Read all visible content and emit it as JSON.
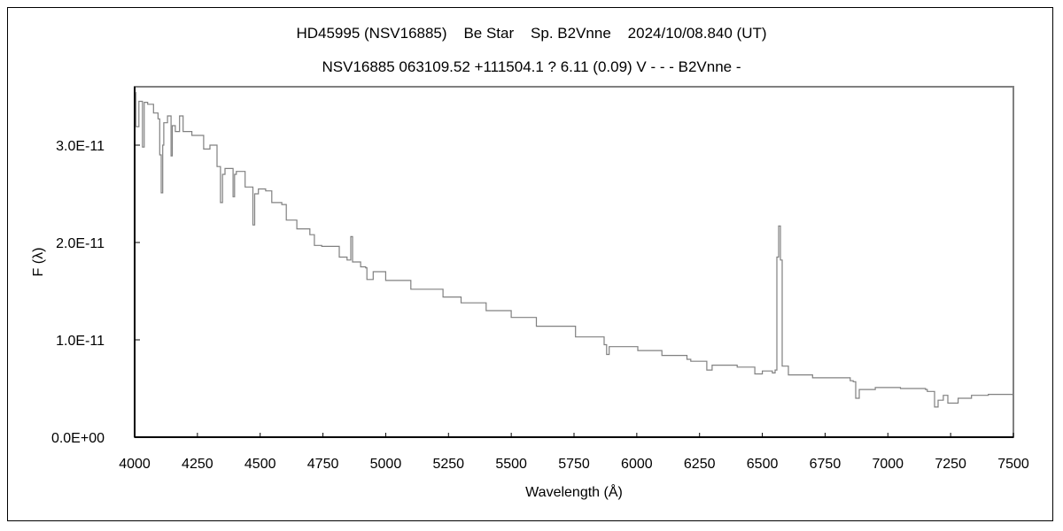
{
  "chart_data": {
    "type": "line",
    "title": "HD45995 (NSV16885)    Be Star    Sp. B2Vnne    2024/10/08.840 (UT)",
    "subtitle": "NSV16885 063109.52 +111504.1 ? 6.11 (0.09) V - - - B2Vnne -",
    "xlabel": "Wavelength (Å)",
    "ylabel": "F (λ)",
    "xlim": [
      4000,
      7500
    ],
    "ylim": [
      0,
      3.6e-11
    ],
    "xticks": [
      "4000",
      "4250",
      "4500",
      "4750",
      "5000",
      "5250",
      "5500",
      "5750",
      "6000",
      "6250",
      "6500",
      "6750",
      "7000",
      "7250",
      "7500"
    ],
    "yticks": [
      {
        "value": 0,
        "label": "0.0E+00"
      },
      {
        "value": 1e-11,
        "label": "1.0E-11"
      },
      {
        "value": 2e-11,
        "label": "2.0E-11"
      },
      {
        "value": 3e-11,
        "label": "3.0E-11"
      }
    ],
    "grid": false,
    "line_color": "#808080",
    "series": [
      {
        "x": [
          4002,
          4005,
          4017,
          4031,
          4038,
          4052,
          4075,
          4093,
          4100,
          4106,
          4112,
          4116,
          4131,
          4145,
          4150,
          4162,
          4179,
          4193,
          4228,
          4275,
          4300,
          4328,
          4342,
          4350,
          4360,
          4381,
          4392,
          4398,
          4405,
          4440,
          4463,
          4471,
          4478,
          4493,
          4522,
          4546,
          4586,
          4604,
          4634,
          4646,
          4698,
          4716,
          4745,
          4815,
          4846,
          4858,
          4861,
          4864,
          4868,
          4900,
          4920,
          4925,
          4950,
          5000,
          5100,
          5228,
          5300,
          5400,
          5500,
          5600,
          5756,
          5870,
          5880,
          5890,
          6004,
          6100,
          6200,
          6215,
          6279,
          6300,
          6400,
          6470,
          6500,
          6540,
          6551,
          6558,
          6565,
          6572,
          6579,
          6604,
          6700,
          6850,
          6862,
          6872,
          6886,
          6950,
          7050,
          7150,
          7157,
          7186,
          7200,
          7221,
          7239,
          7280,
          7333,
          7400,
          7498
        ],
        "y": [
          3.54e-11,
          3.19e-11,
          3.45e-11,
          2.98e-11,
          3.44e-11,
          3.42e-11,
          3.33e-11,
          3.27e-11,
          2.9e-11,
          2.51e-11,
          3e-11,
          3.23e-11,
          3.3e-11,
          2.89e-11,
          3.2e-11,
          3.14e-11,
          3.3e-11,
          3.14e-11,
          3.1e-11,
          2.96e-11,
          3e-11,
          2.78e-11,
          2.41e-11,
          2.7e-11,
          2.76e-11,
          2.76e-11,
          2.47e-11,
          2.7e-11,
          2.73e-11,
          2.57e-11,
          2.57e-11,
          2.18e-11,
          2.5e-11,
          2.55e-11,
          2.53e-11,
          2.41e-11,
          2.39e-11,
          2.23e-11,
          2.23e-11,
          2.14e-11,
          2.08e-11,
          1.97e-11,
          1.96e-11,
          1.85e-11,
          1.82e-11,
          1.82e-11,
          2.06e-11,
          2.06e-11,
          1.8e-11,
          1.75e-11,
          1.74e-11,
          1.62e-11,
          1.7e-11,
          1.61e-11,
          1.52e-11,
          1.44e-11,
          1.38e-11,
          1.3e-11,
          1.23e-11,
          1.14e-11,
          1.03e-11,
          9.5e-12,
          8.5e-12,
          9.3e-12,
          8.9e-12,
          8.4e-12,
          8e-12,
          7.8e-12,
          6.9e-12,
          7.4e-12,
          7.2e-12,
          6.5e-12,
          6.8e-12,
          6.6e-12,
          6.9e-12,
          1.85e-11,
          2.17e-11,
          1.82e-11,
          7.3e-12,
          6.4e-12,
          6.1e-12,
          5.8e-12,
          5.7e-12,
          4e-12,
          4.9e-12,
          5.1e-12,
          5e-12,
          4.9e-12,
          4.7e-12,
          3.1e-12,
          3.8e-12,
          4.3e-12,
          3.5e-12,
          4e-12,
          4.3e-12,
          4.4e-12,
          4.3e-12
        ]
      }
    ]
  }
}
